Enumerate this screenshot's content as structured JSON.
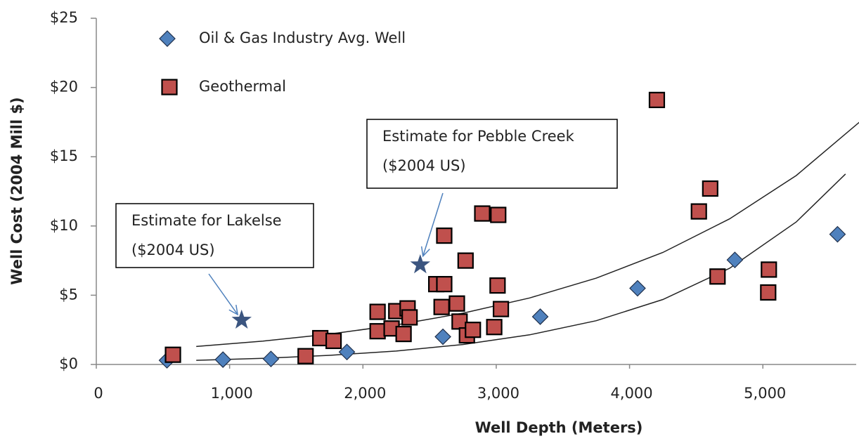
{
  "chart_data": {
    "type": "scatter",
    "x_label": "Well Depth (Meters)",
    "y_label": "Well Cost (2004 Mill $)",
    "xlim": [
      0,
      5700
    ],
    "ylim": [
      0,
      25
    ],
    "xticks": [
      0,
      {
        "value": 1000,
        "label": "1,000"
      },
      {
        "value": 2000,
        "label": "2,000"
      },
      {
        "value": 3000,
        "label": "3,000"
      },
      {
        "value": 4000,
        "label": "4,000"
      },
      {
        "value": 5000,
        "label": "5,000"
      }
    ],
    "yticks": [
      {
        "value": 0,
        "label": "$0"
      },
      {
        "value": 5,
        "label": "$5"
      },
      {
        "value": 10,
        "label": "$10"
      },
      {
        "value": 15,
        "label": "$15"
      },
      {
        "value": 20,
        "label": "$20"
      },
      {
        "value": 25,
        "label": "$25"
      }
    ],
    "legend": "top-left",
    "series": [
      {
        "name": "Oil & Gas Industry Avg. Well",
        "color": "#4f81bd",
        "marker": "diamond",
        "x": [
          530,
          950,
          1310,
          1880,
          2600,
          3330,
          4060,
          4790,
          5560
        ],
        "values": [
          0.3,
          0.35,
          0.4,
          0.9,
          2.0,
          3.45,
          5.5,
          7.55,
          9.4
        ]
      },
      {
        "name": "Geothermal",
        "color": "#c0504d",
        "marker": "square",
        "x": [
          575,
          1570,
          1680,
          1780,
          2110,
          2110,
          2215,
          2250,
          2305,
          2335,
          2350,
          2550,
          2610,
          2590,
          2610,
          2705,
          2725,
          2770,
          2780,
          2825,
          2895,
          2985,
          3015,
          3010,
          3035,
          4205,
          4520,
          4605,
          4660,
          5045,
          5040
        ],
        "values": [
          0.7,
          0.6,
          1.9,
          1.7,
          3.8,
          2.4,
          2.6,
          3.85,
          2.2,
          4.05,
          3.4,
          5.8,
          5.8,
          4.15,
          9.3,
          4.4,
          3.1,
          7.5,
          2.1,
          2.5,
          10.9,
          2.7,
          10.8,
          5.7,
          4.0,
          19.1,
          11.05,
          12.7,
          6.35,
          6.85,
          5.2
        ]
      }
    ],
    "trendlines": [
      {
        "color": "#222222",
        "x": [
          750,
          1250,
          1750,
          2250,
          2750,
          3250,
          3750,
          4250,
          4750,
          5250,
          5750
        ],
        "values": [
          1.3,
          1.69,
          2.19,
          2.85,
          3.7,
          4.8,
          6.23,
          8.09,
          10.51,
          13.64,
          17.71
        ]
      },
      {
        "color": "#222222",
        "x": [
          750,
          1250,
          1750,
          2250,
          2750,
          3250,
          3750,
          4250,
          4750,
          5250,
          5620
        ],
        "values": [
          0.3,
          0.44,
          0.66,
          0.97,
          1.44,
          2.14,
          3.16,
          4.69,
          6.94,
          10.29,
          13.75
        ]
      }
    ],
    "annotations": [
      {
        "text": [
          "Estimate for Lakelse",
          "($2004 US)"
        ],
        "x": 1090,
        "y": 3.2,
        "color": "#3b5580"
      },
      {
        "text": [
          "Estimate for Pebble Creek",
          "($2004 US)"
        ],
        "x": 2430,
        "y": 7.2,
        "color": "#3b5580"
      }
    ]
  }
}
